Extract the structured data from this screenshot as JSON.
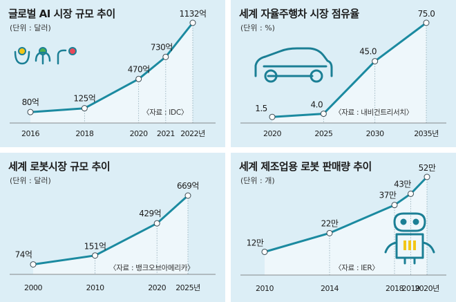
{
  "chart_data": [
    {
      "type": "area",
      "title": "글로벌 AI 시장 규모 추이",
      "unit": "(단위 : 달러)",
      "source": "〈자료 : IDC〉",
      "x": [
        2016,
        2018,
        2020,
        2021,
        2022
      ],
      "values": [
        80,
        125,
        470,
        730,
        1132
      ],
      "labels": [
        "80억",
        "125억",
        "470억",
        "730억",
        "1132억"
      ],
      "tick_labels": [
        "2016",
        "2018",
        "2020",
        "2021",
        "2022년"
      ],
      "xlim": [
        2016,
        2022
      ],
      "ylim": [
        0,
        1132
      ],
      "line_color": "#1b8aa0",
      "icon": "robot-face-icon"
    },
    {
      "type": "area",
      "title": "세계 자율주행차 시장 점유율",
      "unit": "(단위 : %)",
      "source": "〈자료 : 내비건트리서치〉",
      "x": [
        2020,
        2025,
        2030,
        2035
      ],
      "values": [
        1.5,
        4.0,
        45.0,
        75.0
      ],
      "labels": [
        "1.5",
        "4.0",
        "45.0",
        "75.0"
      ],
      "tick_labels": [
        "2020",
        "2025",
        "2030",
        "2035년"
      ],
      "xlim": [
        2020,
        2035
      ],
      "ylim": [
        0,
        75
      ],
      "line_color": "#1b8aa0",
      "icon": "car-icon"
    },
    {
      "type": "area",
      "title": "세계 로봇시장 규모 추이",
      "unit": "(단위 : 달러)",
      "source": "〈자료 : 뱅크오브아메리카〉",
      "x": [
        2000,
        2010,
        2020,
        2025
      ],
      "values": [
        74,
        151,
        429,
        669
      ],
      "labels": [
        "74억",
        "151억",
        "429억",
        "669억"
      ],
      "tick_labels": [
        "2000",
        "2010",
        "2020",
        "2025년"
      ],
      "xlim": [
        2000,
        2025
      ],
      "ylim": [
        0,
        669
      ],
      "line_color": "#1b8aa0"
    },
    {
      "type": "area",
      "title": "세계 제조업용 로봇 판매량 추이",
      "unit": "(단위 : 개)",
      "source": "〈자료 : IER〉",
      "x": [
        2010,
        2014,
        2018,
        2019,
        2020
      ],
      "values": [
        12,
        22,
        37,
        43,
        52
      ],
      "labels": [
        "12만",
        "22만",
        "37만",
        "43만",
        "52만"
      ],
      "tick_labels": [
        "2010",
        "2014",
        "2018",
        "2019",
        "2020년"
      ],
      "xlim": [
        2010,
        2020
      ],
      "ylim": [
        0,
        52
      ],
      "line_color": "#1b8aa0",
      "icon": "robot-icon"
    }
  ]
}
